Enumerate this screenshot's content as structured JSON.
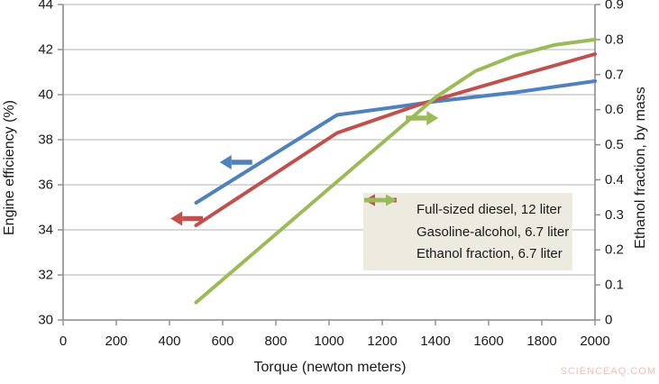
{
  "watermark": "SCIENCEAQ.COM",
  "colors": {
    "diesel_blue": "#4f81bd",
    "gasoline_red": "#c0504d",
    "ethanol_green": "#9bbb59",
    "legend_bg": "#edebe0",
    "gridline": "#b3b3b3",
    "axis_line": "#8c8c8c",
    "tick_text": "#1a1a1a",
    "watermark_color": "#f2bdb8"
  },
  "chart_data": {
    "type": "line",
    "title": "",
    "xlabel": "Torque (newton meters)",
    "ylabel_left": "Engine efficiency (%)",
    "ylabel_right": "Ethanol fraction, by mass",
    "xlim": [
      0,
      2000
    ],
    "ylim_left": [
      30,
      44
    ],
    "ylim_right": [
      0,
      0.9
    ],
    "grid": "horizontal-only",
    "legend_position": "inside lower right",
    "x_ticks": {
      "values": [
        0,
        200,
        400,
        600,
        800,
        1000,
        1200,
        1400,
        1600,
        1800,
        2000
      ],
      "labels": [
        "0",
        "200",
        "400",
        "600",
        "800",
        "1000",
        "1200",
        "1400",
        "1600",
        "1800",
        "2000"
      ]
    },
    "y_left_ticks": {
      "values": [
        30,
        32,
        34,
        36,
        38,
        40,
        42,
        44
      ],
      "labels": [
        "30",
        "32",
        "34",
        "36",
        "38",
        "40",
        "42",
        "44"
      ]
    },
    "y_right_ticks": {
      "values": [
        0,
        0.1,
        0.2,
        0.3,
        0.4,
        0.5,
        0.6,
        0.7,
        0.8,
        0.9
      ],
      "labels": [
        "0",
        "0.1",
        "0.2",
        "0.3",
        "0.4",
        "0.5",
        "0.6",
        "0.7",
        "0.8",
        "0.9"
      ]
    },
    "series": [
      {
        "name": "Full-sized diesel, 12 liter",
        "axis": "left",
        "color_key": "diesel_blue",
        "points": [
          [
            500,
            35.2
          ],
          [
            1030,
            39.1
          ],
          [
            1250,
            39.45
          ],
          [
            1400,
            39.7
          ],
          [
            1700,
            40.1
          ],
          [
            2000,
            40.6
          ]
        ]
      },
      {
        "name": "Gasoline-alcohol, 6.7 liter",
        "axis": "left",
        "color_key": "gasoline_red",
        "points": [
          [
            500,
            34.2
          ],
          [
            1030,
            38.3
          ],
          [
            1350,
            39.6
          ],
          [
            1700,
            40.8
          ],
          [
            2000,
            41.8
          ]
        ]
      },
      {
        "name": "Ethanol fraction, 6.7 liter",
        "axis": "right",
        "color_key": "ethanol_green",
        "points": [
          [
            500,
            0.05
          ],
          [
            1000,
            0.375
          ],
          [
            1400,
            0.635
          ],
          [
            1550,
            0.71
          ],
          [
            1700,
            0.755
          ],
          [
            1850,
            0.785
          ],
          [
            2000,
            0.8
          ]
        ]
      }
    ],
    "annotations": [
      {
        "series": "Full-sized diesel, 12 liter",
        "direction": "left",
        "axis": "left",
        "x": 650,
        "value": 37.0,
        "color_key": "diesel_blue"
      },
      {
        "series": "Gasoline-alcohol, 6.7 liter",
        "direction": "left",
        "axis": "left",
        "x": 465,
        "value": 34.5,
        "color_key": "gasoline_red"
      },
      {
        "series": "Ethanol fraction, 6.7 liter",
        "direction": "right",
        "axis": "right",
        "x": 1350,
        "value": 0.576,
        "color_key": "ethanol_green"
      }
    ]
  },
  "legend": {
    "items": [
      {
        "label": "Full-sized diesel, 12 liter",
        "arrow": "left",
        "color_key": "diesel_blue"
      },
      {
        "label": "Gasoline-alcohol, 6.7 liter",
        "arrow": "left",
        "color_key": "gasoline_red"
      },
      {
        "label": "Ethanol fraction, 6.7 liter",
        "arrow": "right",
        "color_key": "ethanol_green"
      }
    ]
  }
}
